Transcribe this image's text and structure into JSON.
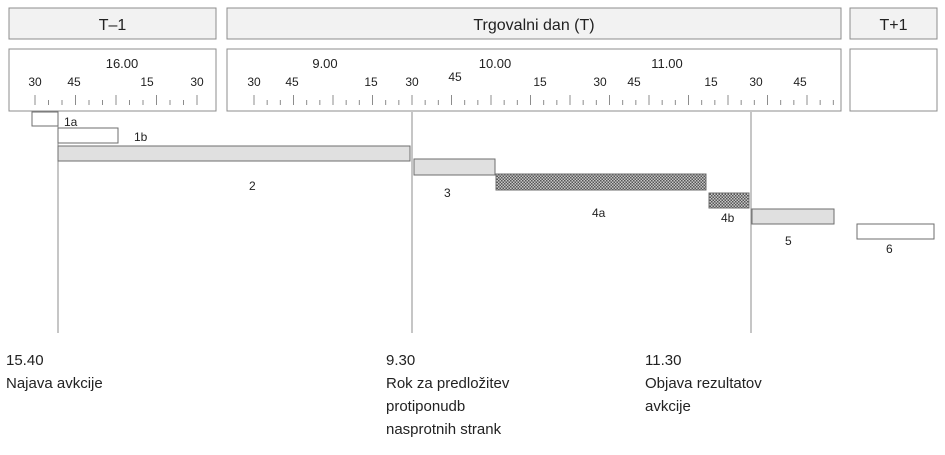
{
  "headers": [
    {
      "id": "prev",
      "label": "T–1"
    },
    {
      "id": "trade",
      "label": "Trgovalni dan (T)"
    },
    {
      "id": "next",
      "label": "T+1"
    }
  ],
  "hour_labels": {
    "prev": [
      "16.00"
    ],
    "trade": [
      "9.00",
      "10.00",
      "11.00"
    ]
  },
  "minute_labels": {
    "prev": [
      "30",
      "45",
      "15",
      "30"
    ],
    "trade": [
      "30",
      "45",
      "15",
      "30",
      "45",
      "15",
      "30",
      "45",
      "15",
      "30",
      "45"
    ]
  },
  "bars": [
    {
      "id": "1a",
      "label": "1a",
      "fill": "#ffffff"
    },
    {
      "id": "1b",
      "label": "1b",
      "fill": "#ffffff"
    },
    {
      "id": "2",
      "label": "2",
      "fill": "#e0e0e0"
    },
    {
      "id": "3",
      "label": "3",
      "fill": "#e0e0e0"
    },
    {
      "id": "4a",
      "label": "4a",
      "fill": "hatch"
    },
    {
      "id": "4b",
      "label": "4b",
      "fill": "hatch"
    },
    {
      "id": "5",
      "label": "5",
      "fill": "#e0e0e0"
    },
    {
      "id": "6",
      "label": "6",
      "fill": "#ffffff"
    }
  ],
  "milestones": [
    {
      "id": "announce",
      "time": "15.40",
      "lines": [
        "Najava avkcije"
      ]
    },
    {
      "id": "deadline",
      "time": "9.30",
      "lines": [
        "Rok za predložitev",
        "protiponudb",
        "nasprotnih strank"
      ]
    },
    {
      "id": "results",
      "time": "11.30",
      "lines": [
        "Objava rezultatov",
        "avkcije"
      ]
    }
  ],
  "colors": {
    "border": "#8c8c8c",
    "header_fill": "#f2f2f2",
    "bar_gray": "#e0e0e0",
    "hatch_dark": "#555555",
    "hatch_light": "#c8c8c8",
    "text": "#222222"
  }
}
